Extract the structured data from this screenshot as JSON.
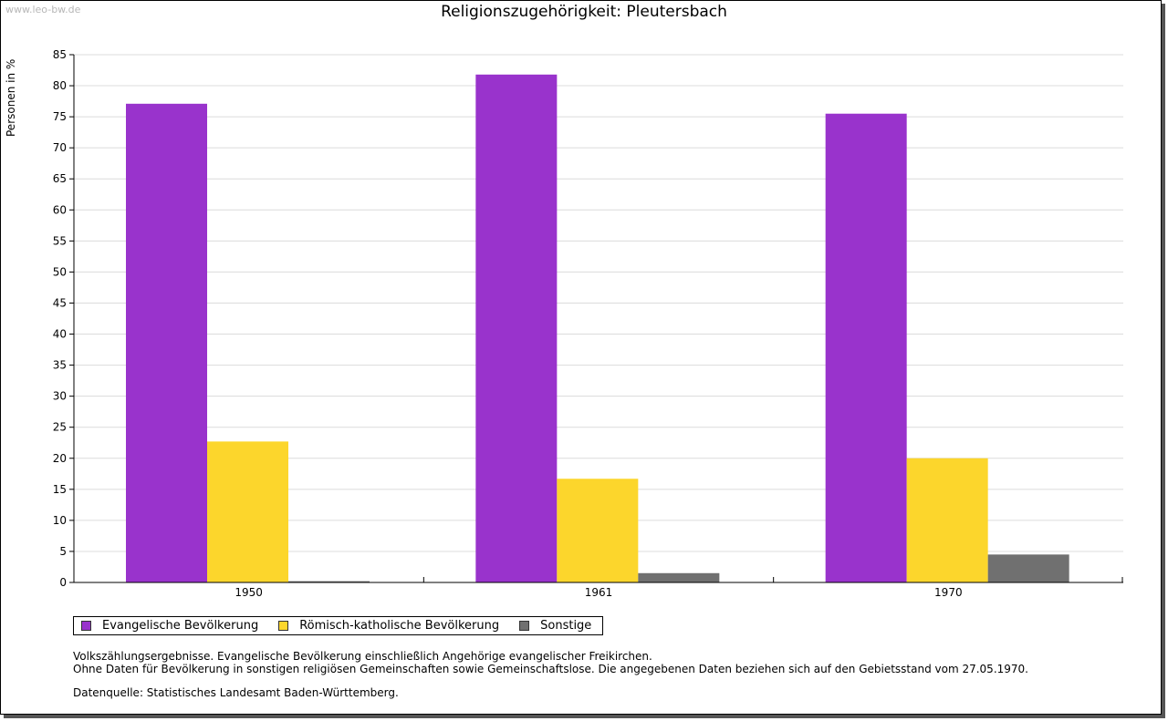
{
  "watermark": "www.leo-bw.de",
  "chart_data": {
    "type": "bar",
    "title": "Religionszugehörigkeit: Pleutersbach",
    "xlabel": "",
    "ylabel": "Personen in %",
    "ylim": [
      0,
      85
    ],
    "ytick_step": 5,
    "grid": true,
    "categories": [
      "1950",
      "1961",
      "1970"
    ],
    "series": [
      {
        "name": "Evangelische Bevölkerung",
        "color": "#9933cc",
        "values": [
          77.1,
          81.8,
          75.5
        ]
      },
      {
        "name": "Römisch-katholische Bevölkerung",
        "color": "#fcd62c",
        "values": [
          22.7,
          16.7,
          20.0
        ]
      },
      {
        "name": "Sonstige",
        "color": "#707070",
        "values": [
          0.2,
          1.5,
          4.5
        ]
      }
    ]
  },
  "notes": {
    "line1": "Volkszählungsergebnisse. Evangelische Bevölkerung einschließlich Angehörige evangelischer Freikirchen.",
    "line2": "Ohne Daten für Bevölkerung in sonstigen religiösen Gemeinschaften sowie Gemeinschaftslose. Die angegebenen Daten beziehen sich auf den Gebietsstand vom 27.05.1970.",
    "source": "Datenquelle: Statistisches Landesamt Baden-Württemberg."
  }
}
